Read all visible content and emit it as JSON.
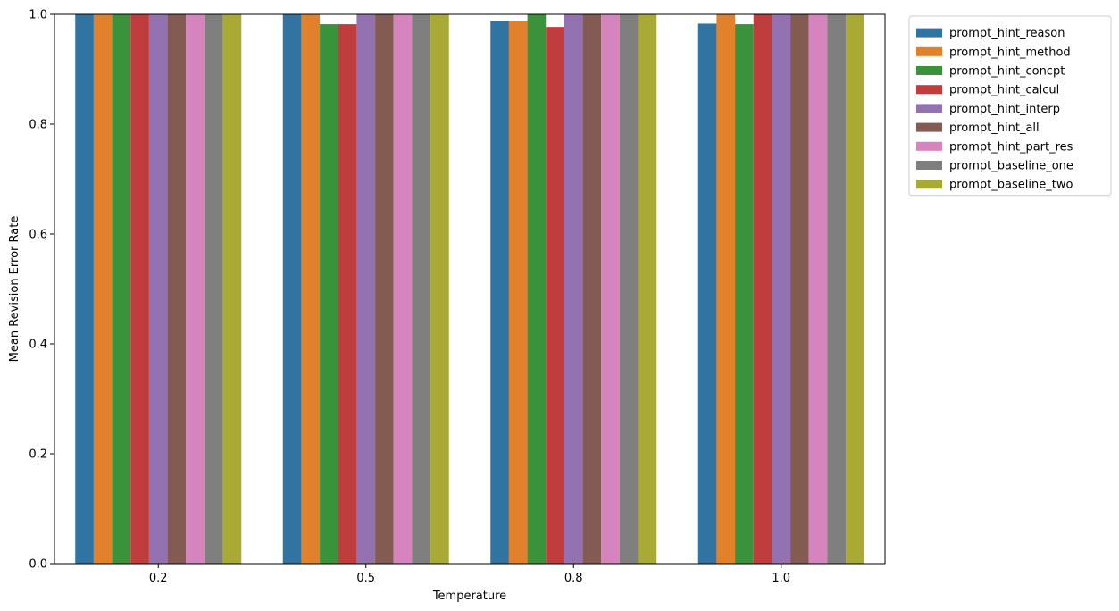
{
  "chart_data": {
    "type": "bar",
    "title": "",
    "xlabel": "Temperature",
    "ylabel": "Mean Revision Error Rate",
    "categories": [
      "0.2",
      "0.5",
      "0.8",
      "1.0"
    ],
    "ylim": [
      0,
      1.0
    ],
    "yticks": [
      "0.0",
      "0.2",
      "0.4",
      "0.6",
      "0.8",
      "1.0"
    ],
    "grid": false,
    "legend_position": "outside-top-right",
    "series": [
      {
        "name": "prompt_hint_reason",
        "color": "#3274a1",
        "values": [
          1.0,
          1.0,
          0.988,
          0.983
        ]
      },
      {
        "name": "prompt_hint_method",
        "color": "#e1812c",
        "values": [
          1.0,
          1.0,
          0.988,
          1.0
        ]
      },
      {
        "name": "prompt_hint_concpt",
        "color": "#3a923a",
        "values": [
          1.0,
          0.982,
          1.0,
          0.982
        ]
      },
      {
        "name": "prompt_hint_calcul",
        "color": "#c03d3e",
        "values": [
          1.0,
          0.982,
          0.977,
          1.0
        ]
      },
      {
        "name": "prompt_hint_interp",
        "color": "#9372b2",
        "values": [
          1.0,
          1.0,
          1.0,
          1.0
        ]
      },
      {
        "name": "prompt_hint_all",
        "color": "#845b53",
        "values": [
          1.0,
          1.0,
          1.0,
          1.0
        ]
      },
      {
        "name": "prompt_hint_part_res",
        "color": "#d684bd",
        "values": [
          1.0,
          1.0,
          1.0,
          1.0
        ]
      },
      {
        "name": "prompt_baseline_one",
        "color": "#7f7f7f",
        "values": [
          1.0,
          1.0,
          1.0,
          1.0
        ]
      },
      {
        "name": "prompt_baseline_two",
        "color": "#a9aa35",
        "values": [
          1.0,
          1.0,
          1.0,
          1.0
        ]
      }
    ]
  }
}
